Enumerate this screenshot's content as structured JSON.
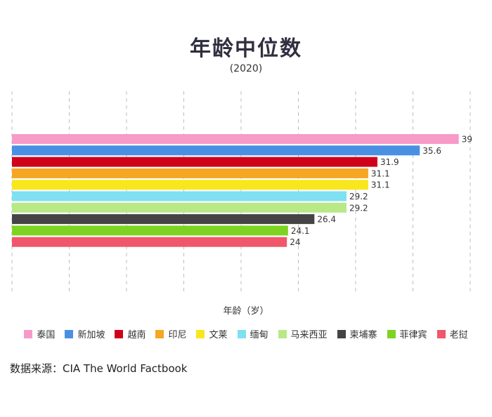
{
  "chart_data": {
    "type": "bar",
    "orientation": "horizontal",
    "title": "年龄中位数",
    "subtitle": "(2020)",
    "xlabel": "年龄（岁）",
    "xlim": [
      0,
      40
    ],
    "grid": true,
    "legend_position": "bottom",
    "categories": [
      "泰国",
      "新加坡",
      "越南",
      "印尼",
      "文莱",
      "缅甸",
      "马来西亚",
      "柬埔寨",
      "菲律宾",
      "老挝"
    ],
    "values": [
      39,
      35.6,
      31.9,
      31.1,
      31.1,
      29.2,
      29.2,
      26.4,
      24.1,
      24
    ],
    "value_labels": [
      "39",
      "35.6",
      "31.9",
      "31.1",
      "31.1",
      "29.2",
      "29.2",
      "26.4",
      "24.1",
      "24"
    ],
    "colors": [
      "#f79ac8",
      "#4a90e2",
      "#d0021b",
      "#f5a623",
      "#f8e71c",
      "#7ee0f0",
      "#b8e986",
      "#444444",
      "#7ed321",
      "#f0576a"
    ]
  },
  "source": "数据来源：CIA The World Factbook"
}
